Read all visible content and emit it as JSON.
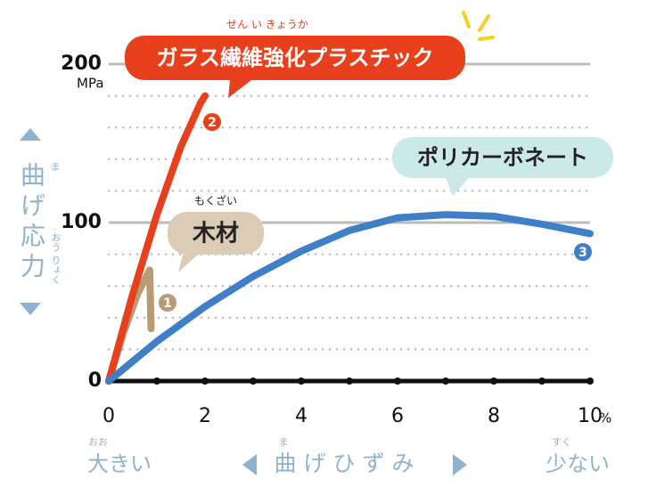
{
  "chart_data": {
    "type": "line",
    "ylabel": "曲げ応力",
    "ylabel_ruby": [
      "ま",
      "おう りょく"
    ],
    "y_unit": "MPa",
    "xlabel": "曲げひずみ",
    "xlabel_ruby": "ま",
    "x_unit": "%",
    "xlabel_left": "大きい",
    "xlabel_left_ruby": "おお",
    "xlabel_right": "少ない",
    "xlabel_right_ruby": "すく",
    "xlim": [
      0,
      10
    ],
    "xticks": [
      0,
      2,
      4,
      6,
      8,
      10
    ],
    "minor_xticks": [
      1,
      3,
      5,
      7,
      9
    ],
    "ylim": [
      0,
      200
    ],
    "yticks": [
      0,
      100,
      200
    ],
    "minor_yticks": [
      20,
      40,
      60,
      80,
      120,
      140,
      160,
      180
    ],
    "grid": true,
    "series": [
      {
        "name": "木材",
        "ruby": "もくざい",
        "label": "1",
        "color": "#b89a77",
        "x": [
          0,
          0.3,
          0.6,
          0.85,
          0.88
        ],
        "values": [
          0,
          30,
          55,
          70,
          33
        ]
      },
      {
        "name": "ガラス繊維強化プラスチック",
        "ruby": "せん い きょうか",
        "label": "2",
        "color": "#e8401c",
        "x": [
          0,
          0.5,
          1,
          1.5,
          1.9,
          2
        ],
        "values": [
          0,
          55,
          105,
          148,
          175,
          180
        ]
      },
      {
        "name": "ポリカーボネート",
        "label": "3",
        "color": "#3f7fc8",
        "x": [
          0,
          1,
          2,
          3,
          4,
          5,
          6,
          7,
          8,
          9,
          10
        ],
        "values": [
          0,
          25,
          47,
          66,
          82,
          95,
          103,
          105,
          104,
          99,
          93
        ]
      }
    ]
  }
}
